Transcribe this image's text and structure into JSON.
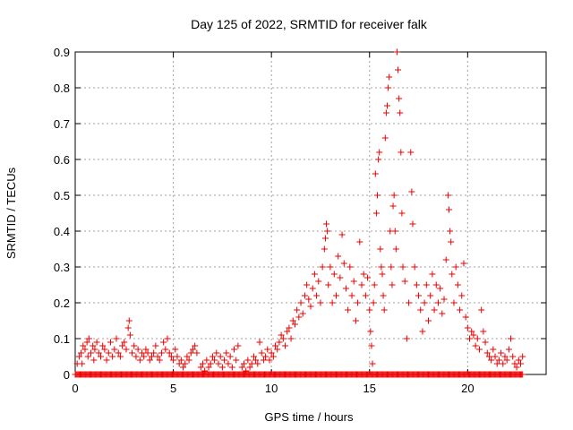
{
  "chart_data": {
    "type": "scatter",
    "title": "Day 125 of 2022, SRMTID for receiver falk",
    "xlabel": "GPS time / hours",
    "ylabel": "SRMTID / TECUs",
    "xlim": [
      0,
      24
    ],
    "ylim": [
      0,
      0.9
    ],
    "xticks": [
      0,
      5,
      10,
      15,
      20
    ],
    "yticks": [
      0,
      0.1,
      0.2,
      0.3,
      0.4,
      0.5,
      0.6,
      0.7,
      0.8,
      0.9
    ],
    "grid": true,
    "marker": "plus",
    "color": "#ee0000",
    "zero_baseline_x_range": [
      0,
      22.8
    ],
    "series": [
      {
        "name": "SRMTID",
        "points": [
          [
            0.1,
            0.03
          ],
          [
            0.2,
            0.05
          ],
          [
            0.3,
            0.06
          ],
          [
            0.35,
            0.03
          ],
          [
            0.4,
            0.08
          ],
          [
            0.5,
            0.07
          ],
          [
            0.6,
            0.09
          ],
          [
            0.65,
            0.05
          ],
          [
            0.7,
            0.1
          ],
          [
            0.8,
            0.06
          ],
          [
            0.9,
            0.08
          ],
          [
            0.95,
            0.04
          ],
          [
            1.0,
            0.07
          ],
          [
            1.1,
            0.09
          ],
          [
            1.2,
            0.06
          ],
          [
            1.3,
            0.05
          ],
          [
            1.4,
            0.08
          ],
          [
            1.5,
            0.07
          ],
          [
            1.6,
            0.04
          ],
          [
            1.7,
            0.06
          ],
          [
            1.8,
            0.09
          ],
          [
            1.9,
            0.05
          ],
          [
            2.0,
            0.07
          ],
          [
            2.1,
            0.1
          ],
          [
            2.2,
            0.06
          ],
          [
            2.3,
            0.05
          ],
          [
            2.4,
            0.08
          ],
          [
            2.5,
            0.09
          ],
          [
            2.6,
            0.07
          ],
          [
            2.7,
            0.13
          ],
          [
            2.75,
            0.15
          ],
          [
            2.8,
            0.11
          ],
          [
            2.9,
            0.06
          ],
          [
            3.0,
            0.08
          ],
          [
            3.1,
            0.05
          ],
          [
            3.2,
            0.07
          ],
          [
            3.3,
            0.04
          ],
          [
            3.4,
            0.06
          ],
          [
            3.5,
            0.05
          ],
          [
            3.6,
            0.07
          ],
          [
            3.7,
            0.06
          ],
          [
            3.8,
            0.04
          ],
          [
            3.9,
            0.05
          ],
          [
            4.0,
            0.06
          ],
          [
            4.1,
            0.08
          ],
          [
            4.2,
            0.05
          ],
          [
            4.3,
            0.04
          ],
          [
            4.4,
            0.06
          ],
          [
            4.5,
            0.09
          ],
          [
            4.6,
            0.07
          ],
          [
            4.7,
            0.1
          ],
          [
            4.8,
            0.06
          ],
          [
            4.9,
            0.05
          ],
          [
            5.0,
            0.04
          ],
          [
            5.1,
            0.07
          ],
          [
            5.2,
            0.05
          ],
          [
            5.3,
            0.03
          ],
          [
            5.4,
            0.04
          ],
          [
            5.5,
            0.02
          ],
          [
            5.6,
            0.03
          ],
          [
            5.7,
            0.05
          ],
          [
            5.8,
            0.04
          ],
          [
            5.9,
            0.06
          ],
          [
            6.0,
            0.07
          ],
          [
            6.1,
            0.08
          ],
          [
            6.2,
            0.06
          ],
          [
            6.4,
            0.02
          ],
          [
            6.5,
            0.03
          ],
          [
            6.6,
            0.01
          ],
          [
            6.7,
            0.04
          ],
          [
            6.8,
            0.02
          ],
          [
            6.9,
            0.03
          ],
          [
            7.0,
            0.05
          ],
          [
            7.1,
            0.04
          ],
          [
            7.2,
            0.06
          ],
          [
            7.3,
            0.03
          ],
          [
            7.4,
            0.05
          ],
          [
            7.5,
            0.02
          ],
          [
            7.6,
            0.04
          ],
          [
            7.7,
            0.06
          ],
          [
            7.8,
            0.03
          ],
          [
            7.9,
            0.05
          ],
          [
            8.0,
            0.02
          ],
          [
            8.1,
            0.07
          ],
          [
            8.2,
            0.04
          ],
          [
            8.3,
            0.08
          ],
          [
            8.5,
            0.02
          ],
          [
            8.6,
            0.03
          ],
          [
            8.7,
            0.01
          ],
          [
            8.8,
            0.04
          ],
          [
            8.9,
            0.02
          ],
          [
            9.0,
            0.03
          ],
          [
            9.1,
            0.05
          ],
          [
            9.2,
            0.04
          ],
          [
            9.3,
            0.03
          ],
          [
            9.4,
            0.09
          ],
          [
            9.5,
            0.06
          ],
          [
            9.6,
            0.04
          ],
          [
            9.7,
            0.05
          ],
          [
            9.8,
            0.07
          ],
          [
            9.9,
            0.04
          ],
          [
            10.0,
            0.06
          ],
          [
            10.1,
            0.05
          ],
          [
            10.2,
            0.08
          ],
          [
            10.3,
            0.07
          ],
          [
            10.4,
            0.09
          ],
          [
            10.5,
            0.11
          ],
          [
            10.6,
            0.1
          ],
          [
            10.7,
            0.08
          ],
          [
            10.8,
            0.12
          ],
          [
            10.9,
            0.13
          ],
          [
            11.0,
            0.1
          ],
          [
            11.1,
            0.15
          ],
          [
            11.2,
            0.14
          ],
          [
            11.3,
            0.18
          ],
          [
            11.4,
            0.16
          ],
          [
            11.5,
            0.2
          ],
          [
            11.6,
            0.17
          ],
          [
            11.7,
            0.22
          ],
          [
            11.8,
            0.25
          ],
          [
            11.9,
            0.21
          ],
          [
            12.0,
            0.19
          ],
          [
            12.1,
            0.24
          ],
          [
            12.2,
            0.28
          ],
          [
            12.3,
            0.22
          ],
          [
            12.4,
            0.26
          ],
          [
            12.5,
            0.2
          ],
          [
            12.6,
            0.3
          ],
          [
            12.7,
            0.35
          ],
          [
            12.75,
            0.38
          ],
          [
            12.8,
            0.42
          ],
          [
            12.85,
            0.4
          ],
          [
            12.9,
            0.25
          ],
          [
            13.0,
            0.3
          ],
          [
            13.1,
            0.2
          ],
          [
            13.2,
            0.28
          ],
          [
            13.3,
            0.22
          ],
          [
            13.4,
            0.33
          ],
          [
            13.5,
            0.27
          ],
          [
            13.6,
            0.39
          ],
          [
            13.7,
            0.31
          ],
          [
            13.8,
            0.24
          ],
          [
            13.9,
            0.18
          ],
          [
            14.0,
            0.3
          ],
          [
            14.1,
            0.22
          ],
          [
            14.2,
            0.26
          ],
          [
            14.3,
            0.15
          ],
          [
            14.4,
            0.2
          ],
          [
            14.5,
            0.37
          ],
          [
            14.6,
            0.25
          ],
          [
            14.7,
            0.28
          ],
          [
            14.8,
            0.22
          ],
          [
            14.9,
            0.27
          ],
          [
            15.0,
            0.18
          ],
          [
            15.05,
            0.12
          ],
          [
            15.1,
            0.08
          ],
          [
            15.15,
            0.03
          ],
          [
            15.2,
            0.2
          ],
          [
            15.25,
            0.25
          ],
          [
            15.3,
            0.56
          ],
          [
            15.35,
            0.45
          ],
          [
            15.4,
            0.5
          ],
          [
            15.45,
            0.6
          ],
          [
            15.5,
            0.62
          ],
          [
            15.55,
            0.35
          ],
          [
            15.6,
            0.3
          ],
          [
            15.65,
            0.28
          ],
          [
            15.7,
            0.22
          ],
          [
            15.75,
            0.18
          ],
          [
            15.8,
            0.66
          ],
          [
            15.85,
            0.73
          ],
          [
            15.9,
            0.75
          ],
          [
            15.95,
            0.8
          ],
          [
            16.0,
            0.83
          ],
          [
            16.05,
            0.4
          ],
          [
            16.1,
            0.3
          ],
          [
            16.15,
            0.25
          ],
          [
            16.2,
            0.47
          ],
          [
            16.25,
            0.5
          ],
          [
            16.3,
            0.4
          ],
          [
            16.35,
            0.35
          ],
          [
            16.4,
            0.9
          ],
          [
            16.45,
            0.85
          ],
          [
            16.5,
            0.77
          ],
          [
            16.55,
            0.73
          ],
          [
            16.6,
            0.62
          ],
          [
            16.65,
            0.45
          ],
          [
            16.7,
            0.3
          ],
          [
            16.8,
            0.26
          ],
          [
            16.9,
            0.1
          ],
          [
            17.0,
            0.2
          ],
          [
            17.1,
            0.62
          ],
          [
            17.15,
            0.51
          ],
          [
            17.2,
            0.42
          ],
          [
            17.3,
            0.3
          ],
          [
            17.4,
            0.25
          ],
          [
            17.5,
            0.22
          ],
          [
            17.6,
            0.18
          ],
          [
            17.7,
            0.12
          ],
          [
            17.8,
            0.2
          ],
          [
            17.9,
            0.25
          ],
          [
            18.0,
            0.15
          ],
          [
            18.1,
            0.22
          ],
          [
            18.2,
            0.28
          ],
          [
            18.3,
            0.18
          ],
          [
            18.4,
            0.25
          ],
          [
            18.5,
            0.2
          ],
          [
            18.6,
            0.24
          ],
          [
            18.7,
            0.17
          ],
          [
            18.8,
            0.21
          ],
          [
            18.9,
            0.32
          ],
          [
            19.0,
            0.5
          ],
          [
            19.05,
            0.46
          ],
          [
            19.1,
            0.4
          ],
          [
            19.15,
            0.37
          ],
          [
            19.2,
            0.28
          ],
          [
            19.3,
            0.2
          ],
          [
            19.4,
            0.3
          ],
          [
            19.5,
            0.25
          ],
          [
            19.6,
            0.18
          ],
          [
            19.7,
            0.22
          ],
          [
            19.8,
            0.31
          ],
          [
            19.9,
            0.16
          ],
          [
            20.0,
            0.13
          ],
          [
            20.1,
            0.1
          ],
          [
            20.2,
            0.12
          ],
          [
            20.3,
            0.11
          ],
          [
            20.4,
            0.08
          ],
          [
            20.5,
            0.1
          ],
          [
            20.6,
            0.07
          ],
          [
            20.7,
            0.18
          ],
          [
            20.8,
            0.12
          ],
          [
            20.9,
            0.09
          ],
          [
            21.0,
            0.06
          ],
          [
            21.1,
            0.05
          ],
          [
            21.2,
            0.04
          ],
          [
            21.3,
            0.07
          ],
          [
            21.4,
            0.05
          ],
          [
            21.5,
            0.03
          ],
          [
            21.6,
            0.04
          ],
          [
            21.7,
            0.06
          ],
          [
            21.8,
            0.03
          ],
          [
            21.9,
            0.05
          ],
          [
            22.0,
            0.04
          ],
          [
            22.1,
            0.07
          ],
          [
            22.2,
            0.1
          ],
          [
            22.3,
            0.05
          ],
          [
            22.4,
            0.03
          ],
          [
            22.5,
            0.02
          ],
          [
            22.6,
            0.04
          ],
          [
            22.7,
            0.03
          ],
          [
            22.8,
            0.05
          ]
        ]
      }
    ]
  }
}
